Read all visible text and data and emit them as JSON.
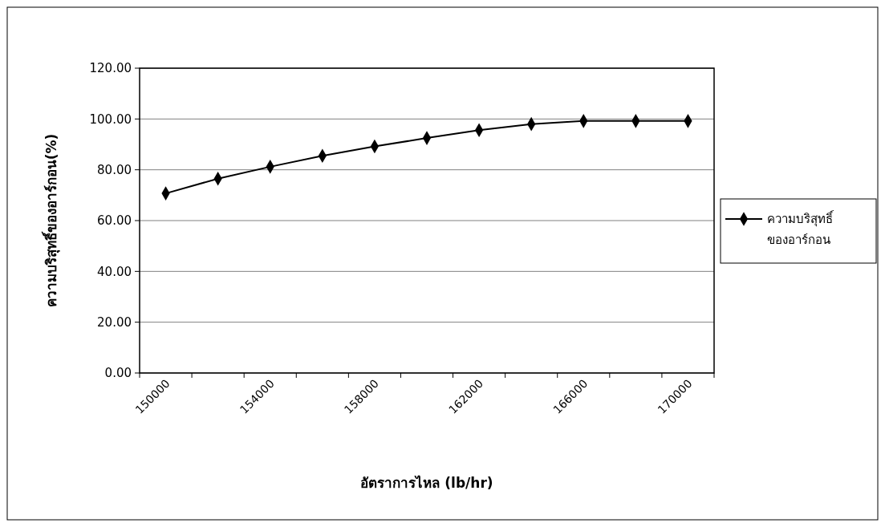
{
  "chart_data": {
    "type": "line",
    "xlabel": "อัตราการไหล (lb/hr)",
    "ylabel": "ความบริสุทธิ์ของอาร์กอน(%)",
    "categories": [
      "150000",
      null,
      "154000",
      null,
      "158000",
      null,
      "162000",
      null,
      "166000",
      null,
      "170000"
    ],
    "series": [
      {
        "name": "ความบริสุทธิ์ ของอาร์กอน",
        "color": "#000000",
        "values": [
          70.7,
          76.5,
          81.2,
          85.5,
          89.2,
          92.5,
          95.6,
          98.0,
          99.2,
          99.2,
          99.2
        ]
      }
    ],
    "ylim": [
      0,
      120
    ],
    "yticks": [
      {
        "value": 0,
        "label": "0.00"
      },
      {
        "value": 20,
        "label": "20.00"
      },
      {
        "value": 40,
        "label": "40.00"
      },
      {
        "value": 60,
        "label": "60.00"
      },
      {
        "value": 80,
        "label": "80.00"
      },
      {
        "value": 100,
        "label": "100.00"
      },
      {
        "value": 120,
        "label": "120.00"
      }
    ],
    "grid": "y",
    "legend": "right",
    "marker": "diamond",
    "line_style": "solid"
  }
}
